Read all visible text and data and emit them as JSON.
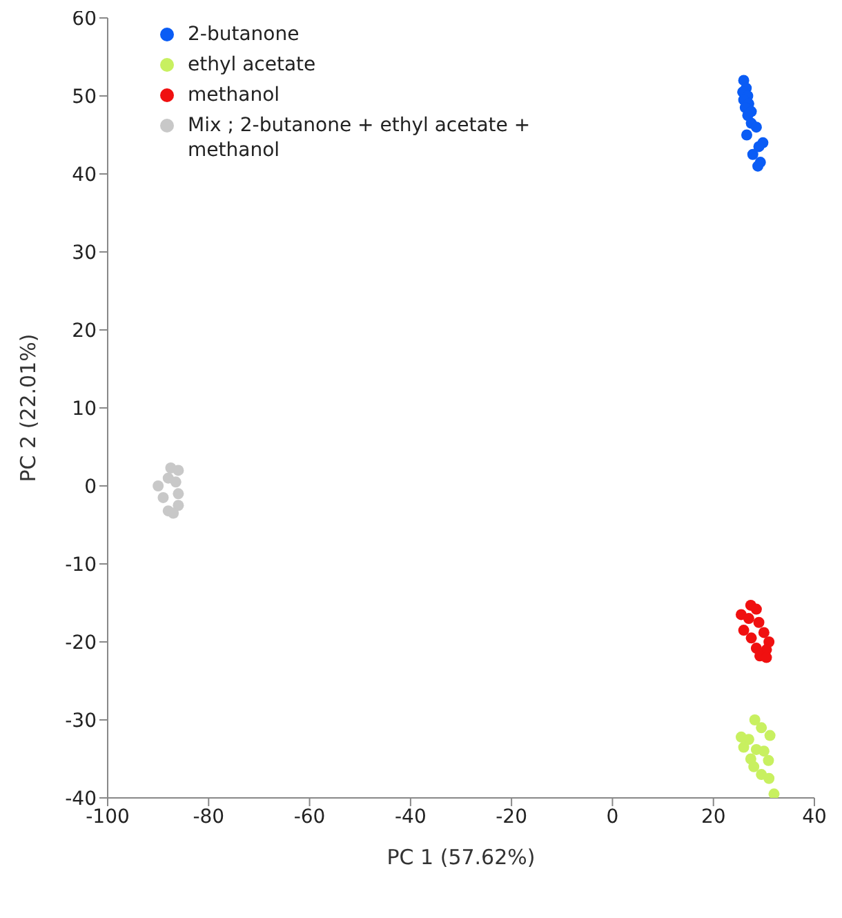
{
  "chart_data": {
    "type": "scatter",
    "xlabel": "PC 1 (57.62%)",
    "ylabel": "PC 2 (22.01%)",
    "xlim": [
      -100,
      40
    ],
    "xticks": [
      -100,
      -80,
      -60,
      -40,
      -20,
      0,
      20,
      40
    ],
    "ylim": [
      -40,
      60
    ],
    "yticks": [
      -40,
      -30,
      -20,
      -10,
      0,
      10,
      20,
      30,
      40,
      50,
      60
    ],
    "grid": false,
    "legend": "top left",
    "marker": "circle",
    "series": [
      {
        "name": "2-butanone",
        "color": "#0a5cf5",
        "x": [
          26,
          26.5,
          25.8,
          26.8,
          26,
          27,
          26.3,
          27.5,
          26.8,
          27.5,
          28.5,
          26.6,
          29.8,
          29,
          27.8,
          29.3,
          28.8
        ],
        "values": [
          52,
          51,
          50.5,
          50,
          49.5,
          49,
          48.5,
          48,
          47.5,
          46.5,
          46,
          45,
          44,
          43.5,
          42.5,
          41.5,
          41
        ]
      },
      {
        "name": "ethyl acetate",
        "color": "#c8f060",
        "x": [
          28.2,
          29.5,
          25.5,
          27,
          31.2,
          26,
          28.5,
          30,
          27.4,
          30.9,
          28,
          29.5,
          31,
          32
        ],
        "values": [
          -30,
          -31,
          -32.2,
          -32.5,
          -32,
          -33.5,
          -33.8,
          -34,
          -35,
          -35.2,
          -36,
          -37,
          -37.5,
          -39.5
        ]
      },
      {
        "name": "methanol",
        "color": "#f01010",
        "x": [
          27.4,
          28.5,
          25.5,
          27,
          29,
          26,
          30,
          27.5,
          31,
          28.5,
          30.5,
          29.2,
          30.5
        ],
        "values": [
          -15.3,
          -15.8,
          -16.5,
          -17,
          -17.5,
          -18.5,
          -18.8,
          -19.5,
          -20,
          -20.8,
          -21,
          -21.8,
          -22
        ]
      },
      {
        "name": "Mix ; 2-butanone + ethyl acetate + methanol",
        "color": "#c8c8c8",
        "x": [
          -87.5,
          -86,
          -88,
          -86.5,
          -90,
          -86,
          -89,
          -86,
          -88,
          -87
        ],
        "values": [
          2.3,
          2,
          1,
          0.5,
          0,
          -1,
          -1.5,
          -2.5,
          -3.2,
          -3.5
        ]
      }
    ]
  }
}
